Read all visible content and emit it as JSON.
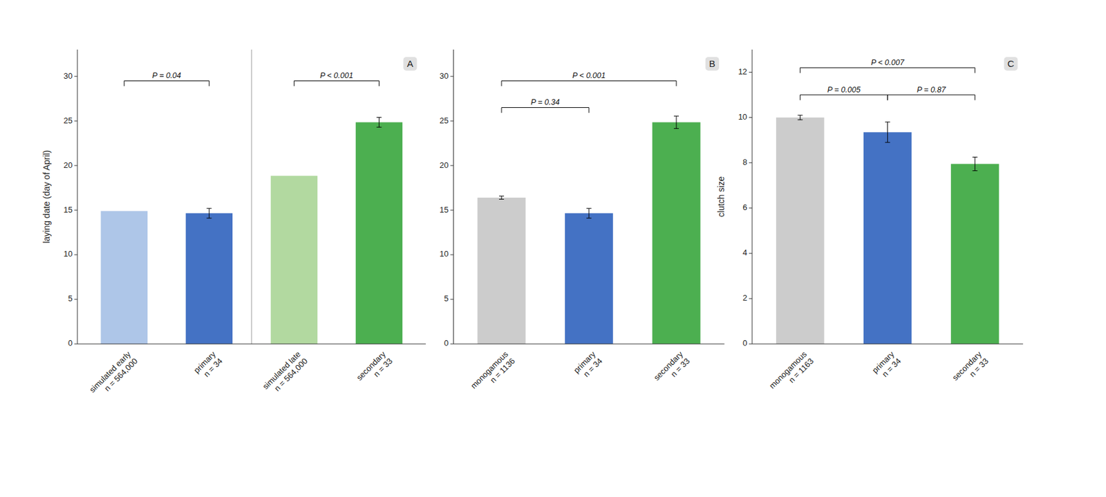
{
  "chart_data": [
    {
      "type": "bar",
      "title": "A",
      "categories": [
        "simulated early\nn = 564,000",
        "primary\nn = 34",
        "simulated late\nn = 564,000",
        "secondary\nn = 33"
      ],
      "values": [
        14.9,
        14.65,
        18.85,
        24.85
      ],
      "errors": [
        0.0,
        0.55,
        0.0,
        0.55
      ],
      "colors": [
        "#aec6e8",
        "#4472c4",
        "#b2d9a0",
        "#4caf50"
      ],
      "ylabel": "laying date (day of April)",
      "ylim": [
        0,
        33
      ],
      "yticks": [
        0,
        5,
        10,
        15,
        20,
        25,
        30
      ],
      "grid": false,
      "annotations": [
        {
          "x1": 0,
          "x2": 1,
          "y": 29.5,
          "text": "P = 0.04"
        },
        {
          "x1": 2,
          "x2": 3,
          "y": 29.5,
          "text": "P < 0.001"
        }
      ],
      "divider_x": 1.5
    },
    {
      "type": "bar",
      "title": "B",
      "categories": [
        "monogamous\nn = 1136",
        "primary\nn = 34",
        "secondary\nn = 33"
      ],
      "values": [
        16.4,
        14.65,
        24.85
      ],
      "errors": [
        0.18,
        0.55,
        0.7
      ],
      "colors": [
        "#cccccc",
        "#4472c4",
        "#4caf50"
      ],
      "ylim": [
        0,
        33
      ],
      "yticks": [
        0,
        5,
        10,
        15,
        20,
        25,
        30
      ],
      "grid": false,
      "annotations": [
        {
          "x1": 0,
          "x2": 1,
          "y": 26.5,
          "text": "P = 0.34"
        },
        {
          "x1": 0,
          "x2": 2,
          "y": 29.5,
          "text": "P < 0.001"
        }
      ]
    },
    {
      "type": "bar",
      "title": "C",
      "categories": [
        "monogamous\nn = 1163",
        "primary\nn = 34",
        "secondary\nn = 33"
      ],
      "values": [
        10.0,
        9.35,
        7.95
      ],
      "errors": [
        0.1,
        0.45,
        0.3
      ],
      "colors": [
        "#cccccc",
        "#4472c4",
        "#4caf50"
      ],
      "ylabel": "clutch size",
      "ylim": [
        0,
        13
      ],
      "yticks": [
        0,
        2,
        4,
        6,
        8,
        10,
        12
      ],
      "grid": false,
      "annotations": [
        {
          "x1": 0,
          "x2": 1,
          "y": 11.0,
          "text": "P = 0.005"
        },
        {
          "x1": 1,
          "x2": 2,
          "y": 11.0,
          "text": "P = 0.87"
        },
        {
          "x1": 0,
          "x2": 2,
          "y": 12.2,
          "text": "P < 0.007"
        }
      ]
    }
  ]
}
